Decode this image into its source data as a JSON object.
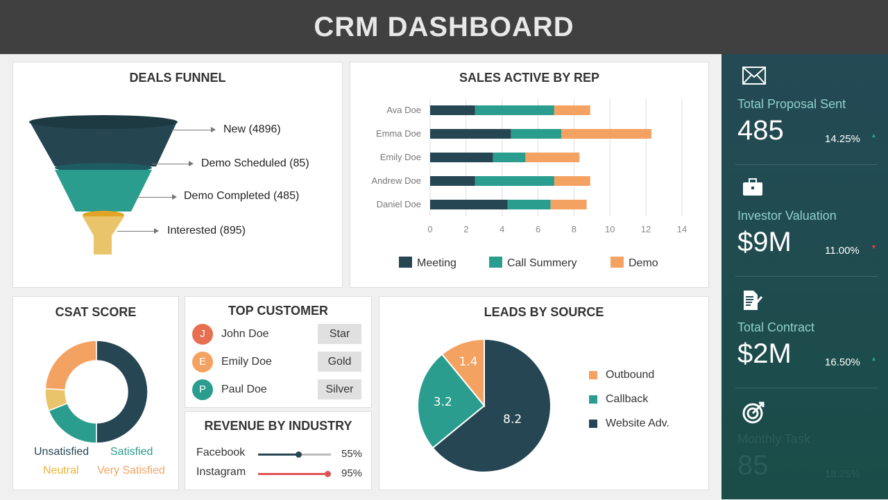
{
  "header": {
    "title": "CRM DASHBOARD"
  },
  "funnel": {
    "title": "DEALS FUNNEL",
    "stages": [
      {
        "label": "New (4896)",
        "color": "#254650"
      },
      {
        "label": "Demo Scheduled (85)",
        "color": "#1f5b63"
      },
      {
        "label": "Demo Completed (485)",
        "color": "#2a9d8f"
      },
      {
        "label": "Interested (895)",
        "color": "#e9c46a"
      }
    ]
  },
  "sales": {
    "title": "SALES ACTIVE BY REP"
  },
  "chart_data": [
    {
      "type": "bar",
      "orientation": "horizontal",
      "stacked": true,
      "title": "SALES ACTIVE BY REP",
      "categories": [
        "Ava Doe",
        "Emma Doe",
        "Emily Doe",
        "Andrew Doe",
        "Daniel Doe"
      ],
      "series": [
        {
          "name": "Meeting",
          "color": "#264653",
          "values": [
            2.5,
            4.5,
            3.5,
            2.5,
            4.3
          ]
        },
        {
          "name": "Call Summery",
          "color": "#2a9d8f",
          "values": [
            4.4,
            2.8,
            1.8,
            4.4,
            2.4
          ]
        },
        {
          "name": "Demo",
          "color": "#f4a261",
          "values": [
            2.0,
            5.0,
            3.0,
            2.0,
            2.0
          ]
        }
      ],
      "xlim": [
        0,
        14
      ],
      "xticks": [
        0,
        2,
        4,
        6,
        8,
        10,
        12,
        14
      ],
      "grid": true,
      "legend": "bottom"
    },
    {
      "type": "pie",
      "donut": true,
      "title": "CSAT SCORE",
      "categories": [
        "Unsatisfied",
        "Satisfied",
        "Neutral",
        "Very Satisfied"
      ],
      "values": [
        50,
        19,
        7,
        24
      ],
      "colors": [
        "#264653",
        "#2a9d8f",
        "#e9c46a",
        "#f4a261"
      ],
      "legend": "bottom"
    },
    {
      "type": "pie",
      "title": "LEADS BY SOURCE",
      "categories": [
        "Website Adv.",
        "Callback",
        "Outbound"
      ],
      "values": [
        8.2,
        3.2,
        1.4
      ],
      "colors": [
        "#264653",
        "#2a9d8f",
        "#f4a261"
      ],
      "legend": "right"
    }
  ],
  "csat": {
    "title": "CSAT SCORE",
    "legend": [
      "Unsatisfied",
      "Satisfied",
      "Neutral",
      "Very Satisfied"
    ]
  },
  "customers": {
    "title": "TOP CUSTOMER",
    "items": [
      {
        "initial": "J",
        "name": "John Doe",
        "tier": "Star",
        "color": "#e76f51"
      },
      {
        "initial": "E",
        "name": "Emily Doe",
        "tier": "Gold",
        "color": "#f4a261"
      },
      {
        "initial": "P",
        "name": "Paul Doe",
        "tier": "Silver",
        "color": "#2a9d8f"
      }
    ]
  },
  "revenue": {
    "title": "REVENUE BY INDUSTRY",
    "items": [
      {
        "name": "Facebook",
        "percent": 55,
        "label": "55%",
        "color": "#264653"
      },
      {
        "name": "Instagram",
        "percent": 95,
        "label": "95%",
        "color": "#e05252"
      }
    ]
  },
  "leads": {
    "title": "LEADS BY SOURCE",
    "legend": [
      "Outbound",
      "Callback",
      "Website Adv."
    ],
    "labels": [
      "8.2",
      "3.2",
      "1.4"
    ]
  },
  "kpis": [
    {
      "icon": "envelope-icon",
      "label": "Total Proposal Sent",
      "value": "485",
      "change": "14.25%",
      "trend": "up"
    },
    {
      "icon": "briefcase-icon",
      "label": "Investor Valuation",
      "value": "$9M",
      "change": "11.00%",
      "trend": "down"
    },
    {
      "icon": "contract-icon",
      "label": "Total Contract",
      "value": "$2M",
      "change": "16.50%",
      "trend": "up"
    },
    {
      "icon": "target-icon",
      "label": "Monthly Task",
      "value": "85",
      "change": "18.25%",
      "trend": "up"
    }
  ],
  "colors": {
    "up": "#2a9d8f",
    "down": "#e63950"
  }
}
